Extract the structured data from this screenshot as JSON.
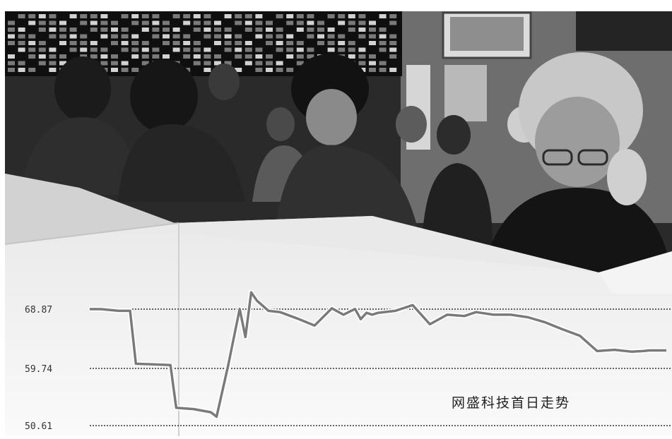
{
  "chart_data": {
    "type": "line",
    "title": "网盛科技首日走势",
    "y_ticks": [
      "68.87",
      "59.74",
      "50.61"
    ],
    "ylim": [
      50.61,
      68.87
    ],
    "x": [
      0,
      0.02,
      0.05,
      0.07,
      0.08,
      0.11,
      0.14,
      0.15,
      0.18,
      0.21,
      0.22,
      0.24,
      0.26,
      0.27,
      0.28,
      0.29,
      0.31,
      0.33,
      0.36,
      0.39,
      0.42,
      0.44,
      0.46,
      0.47,
      0.48,
      0.49,
      0.5,
      0.53,
      0.56,
      0.59,
      0.62,
      0.65,
      0.67,
      0.7,
      0.73,
      0.76,
      0.79,
      0.82,
      0.85,
      0.88,
      0.91,
      0.94,
      0.96,
      0.97,
      0.98,
      1.0
    ],
    "values": [
      68.87,
      68.87,
      68.6,
      68.6,
      60.3,
      60.2,
      60.1,
      53.4,
      53.2,
      52.7,
      52.0,
      60.0,
      68.9,
      64.5,
      71.5,
      70.2,
      68.6,
      68.4,
      67.4,
      66.3,
      69.0,
      68.0,
      68.9,
      67.3,
      68.3,
      68.0,
      68.3,
      68.6,
      69.5,
      66.5,
      68.0,
      67.8,
      68.4,
      68.0,
      68.0,
      67.6,
      66.8,
      65.7,
      64.7,
      62.3,
      62.5,
      62.2,
      62.3,
      62.4,
      62.4,
      62.4
    ],
    "colors": {
      "line": "#7a7a7a",
      "line_glow": "#ffffff",
      "gridline": "#333333",
      "paper": "#f2f2f2"
    }
  }
}
